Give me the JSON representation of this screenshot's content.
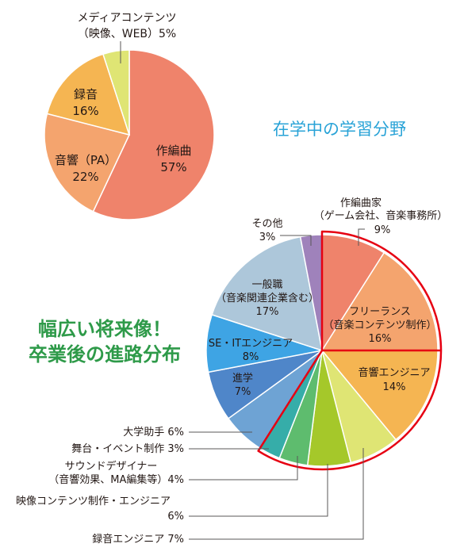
{
  "chart_data": [
    {
      "type": "pie",
      "title": "在学中の学習分野",
      "slices": [
        {
          "label": "作編曲",
          "value": 57,
          "value_label": "57%",
          "color": "#ef836b"
        },
        {
          "label": "音響（PA）",
          "value": 22,
          "value_label": "22%",
          "color": "#f4a46e"
        },
        {
          "label": "録音",
          "value": 16,
          "value_label": "16%",
          "color": "#f5b552"
        },
        {
          "label_line1": "メディアコンテンツ",
          "label_line2": "（映像、WEB）5%",
          "value": 5,
          "color": "#dfe574"
        }
      ]
    },
    {
      "type": "pie",
      "title_line1": "幅広い将来像！",
      "title_line2": "卒業後の進路分布",
      "slices": [
        {
          "label_line1": "作編曲家",
          "label_line2": "（ゲーム会社、音楽事務所）",
          "label_line3": "9%",
          "value": 9,
          "color": "#ef836b"
        },
        {
          "label_line1": "フリーランス",
          "label_line2": "（音楽コンテンツ制作）",
          "label_line3": "16%",
          "value": 16,
          "color": "#f4a46e"
        },
        {
          "label_line1": "音響エンジニア",
          "label_line2": "14%",
          "value": 14,
          "color": "#f5b552"
        },
        {
          "label": "録音エンジニア 7%",
          "value": 7,
          "color": "#dfe574"
        },
        {
          "label_line1": "映像コンテンツ制作・エンジニア",
          "label_line2": "6%",
          "value": 6,
          "color": "#a5c82a"
        },
        {
          "label_line1": "サウンドデザイナー",
          "label_line2": "（音響効果、MA編集等）4%",
          "value": 4,
          "color": "#5ebc6e"
        },
        {
          "label": "舞台・イベント制作 3%",
          "value": 3,
          "color": "#36ada9"
        },
        {
          "label": "大学助手 6%",
          "value": 6,
          "color": "#6ea3d4"
        },
        {
          "label_line1": "進学",
          "label_line2": "7%",
          "value": 7,
          "color": "#4f86c9"
        },
        {
          "label_line1": "SE・ITエンジニア",
          "label_line2": "8%",
          "value": 8,
          "color": "#3ea4e4"
        },
        {
          "label_line1": "一般職",
          "label_line2": "（音楽関連企業含む）",
          "label_line3": "17%",
          "value": 17,
          "color": "#adc7da"
        },
        {
          "label_line1": "その他",
          "label_line2": "3%",
          "value": 3,
          "color": "#9f82bb"
        }
      ],
      "highlight_color": "#e60012"
    }
  ]
}
